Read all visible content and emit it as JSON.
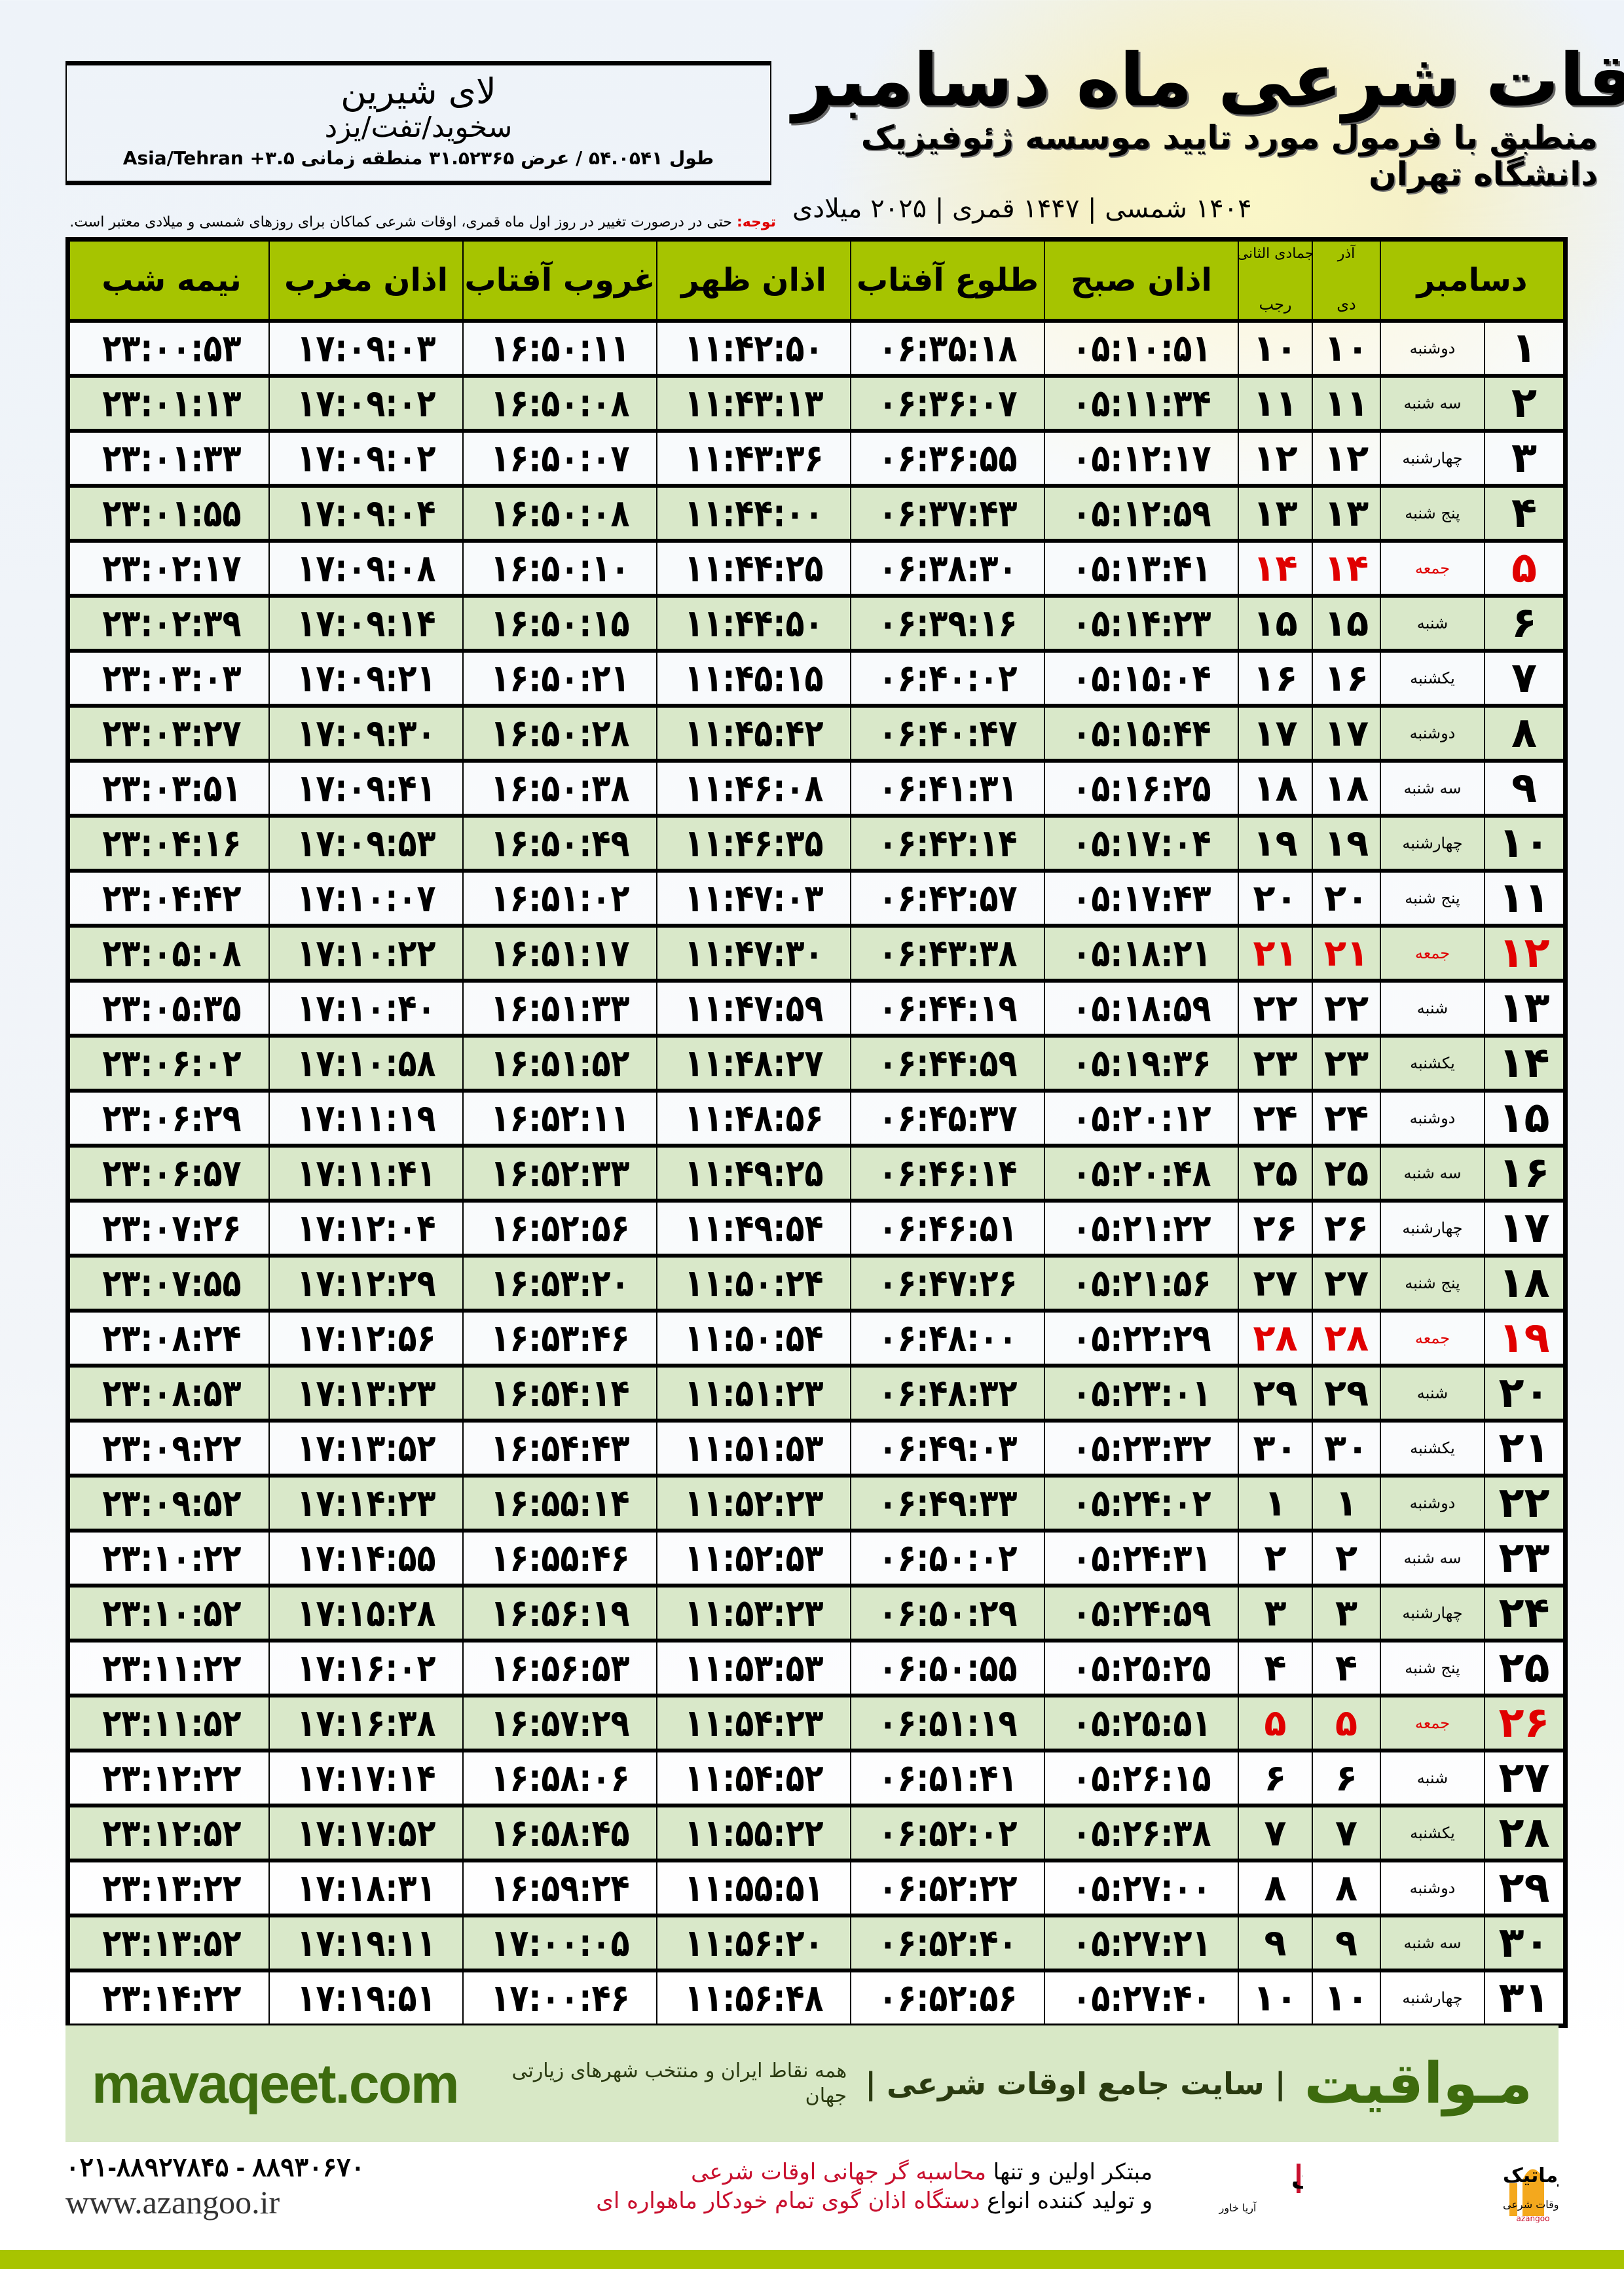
{
  "header": {
    "title": "اوقات شرعی ماه دسامبر",
    "subtitle": "منطبق با فرمول مورد تایید موسسه ژئوفیزیک دانشگاه تهران",
    "dateline": "۱۴۰۴ شمسی | ۱۴۴۷ قمری | ۲۰۲۵ میلادی"
  },
  "location": {
    "city": "لای شیرین",
    "region": "سخوید/تفت/یزد",
    "coords": "طول ۵۴.۰۵۴۱ / عرض ۳۱.۵۲۳۶۵ منطقه زمانی Asia/Tehran +۳.۵"
  },
  "note": {
    "label": "توجه:",
    "text": " حتی در درصورت تغییر در روز اول ماه قمری، اوقات شرعی کماکان برای روزهای شمسی و میلادی معتبر است."
  },
  "table": {
    "headers": {
      "month": "دسامبر",
      "shamsi_top": "آذر",
      "shamsi_bottom": "دی",
      "hijri_top": "جمادی الثانی",
      "hijri_bottom": "رجب",
      "fajr": "اذان صبح",
      "sunrise": "طلوع آفتاب",
      "dhuhr": "اذان ظهر",
      "sunset": "غروب آفتاب",
      "maghrib": "اذان مغرب",
      "midnight": "نیمه شب"
    },
    "friday_color": "#e00000",
    "header_color": "#a6c400",
    "alt_row_color": "#d9e8c9",
    "rows": [
      [
        "۱",
        "دوشنبه",
        "۱۰",
        "۱۰",
        "۰۵:۱۰:۵۱",
        "۰۶:۳۵:۱۸",
        "۱۱:۴۲:۵۰",
        "۱۶:۵۰:۱۱",
        "۱۷:۰۹:۰۳",
        "۲۳:۰۰:۵۳"
      ],
      [
        "۲",
        "سه شنبه",
        "۱۱",
        "۱۱",
        "۰۵:۱۱:۳۴",
        "۰۶:۳۶:۰۷",
        "۱۱:۴۳:۱۳",
        "۱۶:۵۰:۰۸",
        "۱۷:۰۹:۰۲",
        "۲۳:۰۱:۱۳"
      ],
      [
        "۳",
        "چهارشنبه",
        "۱۲",
        "۱۲",
        "۰۵:۱۲:۱۷",
        "۰۶:۳۶:۵۵",
        "۱۱:۴۳:۳۶",
        "۱۶:۵۰:۰۷",
        "۱۷:۰۹:۰۲",
        "۲۳:۰۱:۳۳"
      ],
      [
        "۴",
        "پنج شنبه",
        "۱۳",
        "۱۳",
        "۰۵:۱۲:۵۹",
        "۰۶:۳۷:۴۳",
        "۱۱:۴۴:۰۰",
        "۱۶:۵۰:۰۸",
        "۱۷:۰۹:۰۴",
        "۲۳:۰۱:۵۵"
      ],
      [
        "۵",
        "جمعه",
        "۱۴",
        "۱۴",
        "۰۵:۱۳:۴۱",
        "۰۶:۳۸:۳۰",
        "۱۱:۴۴:۲۵",
        "۱۶:۵۰:۱۰",
        "۱۷:۰۹:۰۸",
        "۲۳:۰۲:۱۷"
      ],
      [
        "۶",
        "شنبه",
        "۱۵",
        "۱۵",
        "۰۵:۱۴:۲۳",
        "۰۶:۳۹:۱۶",
        "۱۱:۴۴:۵۰",
        "۱۶:۵۰:۱۵",
        "۱۷:۰۹:۱۴",
        "۲۳:۰۲:۳۹"
      ],
      [
        "۷",
        "یکشنبه",
        "۱۶",
        "۱۶",
        "۰۵:۱۵:۰۴",
        "۰۶:۴۰:۰۲",
        "۱۱:۴۵:۱۵",
        "۱۶:۵۰:۲۱",
        "۱۷:۰۹:۲۱",
        "۲۳:۰۳:۰۳"
      ],
      [
        "۸",
        "دوشنبه",
        "۱۷",
        "۱۷",
        "۰۵:۱۵:۴۴",
        "۰۶:۴۰:۴۷",
        "۱۱:۴۵:۴۲",
        "۱۶:۵۰:۲۸",
        "۱۷:۰۹:۳۰",
        "۲۳:۰۳:۲۷"
      ],
      [
        "۹",
        "سه شنبه",
        "۱۸",
        "۱۸",
        "۰۵:۱۶:۲۵",
        "۰۶:۴۱:۳۱",
        "۱۱:۴۶:۰۸",
        "۱۶:۵۰:۳۸",
        "۱۷:۰۹:۴۱",
        "۲۳:۰۳:۵۱"
      ],
      [
        "۱۰",
        "چهارشنبه",
        "۱۹",
        "۱۹",
        "۰۵:۱۷:۰۴",
        "۰۶:۴۲:۱۴",
        "۱۱:۴۶:۳۵",
        "۱۶:۵۰:۴۹",
        "۱۷:۰۹:۵۳",
        "۲۳:۰۴:۱۶"
      ],
      [
        "۱۱",
        "پنج شنبه",
        "۲۰",
        "۲۰",
        "۰۵:۱۷:۴۳",
        "۰۶:۴۲:۵۷",
        "۱۱:۴۷:۰۳",
        "۱۶:۵۱:۰۲",
        "۱۷:۱۰:۰۷",
        "۲۳:۰۴:۴۲"
      ],
      [
        "۱۲",
        "جمعه",
        "۲۱",
        "۲۱",
        "۰۵:۱۸:۲۱",
        "۰۶:۴۳:۳۸",
        "۱۱:۴۷:۳۰",
        "۱۶:۵۱:۱۷",
        "۱۷:۱۰:۲۲",
        "۲۳:۰۵:۰۸"
      ],
      [
        "۱۳",
        "شنبه",
        "۲۲",
        "۲۲",
        "۰۵:۱۸:۵۹",
        "۰۶:۴۴:۱۹",
        "۱۱:۴۷:۵۹",
        "۱۶:۵۱:۳۳",
        "۱۷:۱۰:۴۰",
        "۲۳:۰۵:۳۵"
      ],
      [
        "۱۴",
        "یکشنبه",
        "۲۳",
        "۲۳",
        "۰۵:۱۹:۳۶",
        "۰۶:۴۴:۵۹",
        "۱۱:۴۸:۲۷",
        "۱۶:۵۱:۵۲",
        "۱۷:۱۰:۵۸",
        "۲۳:۰۶:۰۲"
      ],
      [
        "۱۵",
        "دوشنبه",
        "۲۴",
        "۲۴",
        "۰۵:۲۰:۱۲",
        "۰۶:۴۵:۳۷",
        "۱۱:۴۸:۵۶",
        "۱۶:۵۲:۱۱",
        "۱۷:۱۱:۱۹",
        "۲۳:۰۶:۲۹"
      ],
      [
        "۱۶",
        "سه شنبه",
        "۲۵",
        "۲۵",
        "۰۵:۲۰:۴۸",
        "۰۶:۴۶:۱۴",
        "۱۱:۴۹:۲۵",
        "۱۶:۵۲:۳۳",
        "۱۷:۱۱:۴۱",
        "۲۳:۰۶:۵۷"
      ],
      [
        "۱۷",
        "چهارشنبه",
        "۲۶",
        "۲۶",
        "۰۵:۲۱:۲۲",
        "۰۶:۴۶:۵۱",
        "۱۱:۴۹:۵۴",
        "۱۶:۵۲:۵۶",
        "۱۷:۱۲:۰۴",
        "۲۳:۰۷:۲۶"
      ],
      [
        "۱۸",
        "پنج شنبه",
        "۲۷",
        "۲۷",
        "۰۵:۲۱:۵۶",
        "۰۶:۴۷:۲۶",
        "۱۱:۵۰:۲۴",
        "۱۶:۵۳:۲۰",
        "۱۷:۱۲:۲۹",
        "۲۳:۰۷:۵۵"
      ],
      [
        "۱۹",
        "جمعه",
        "۲۸",
        "۲۸",
        "۰۵:۲۲:۲۹",
        "۰۶:۴۸:۰۰",
        "۱۱:۵۰:۵۴",
        "۱۶:۵۳:۴۶",
        "۱۷:۱۲:۵۶",
        "۲۳:۰۸:۲۴"
      ],
      [
        "۲۰",
        "شنبه",
        "۲۹",
        "۲۹",
        "۰۵:۲۳:۰۱",
        "۰۶:۴۸:۳۲",
        "۱۱:۵۱:۲۳",
        "۱۶:۵۴:۱۴",
        "۱۷:۱۳:۲۳",
        "۲۳:۰۸:۵۳"
      ],
      [
        "۲۱",
        "یکشنبه",
        "۳۰",
        "۳۰",
        "۰۵:۲۳:۳۲",
        "۰۶:۴۹:۰۳",
        "۱۱:۵۱:۵۳",
        "۱۶:۵۴:۴۳",
        "۱۷:۱۳:۵۲",
        "۲۳:۰۹:۲۲"
      ],
      [
        "۲۲",
        "دوشنبه",
        "۱",
        "۱",
        "۰۵:۲۴:۰۲",
        "۰۶:۴۹:۳۳",
        "۱۱:۵۲:۲۳",
        "۱۶:۵۵:۱۴",
        "۱۷:۱۴:۲۳",
        "۲۳:۰۹:۵۲"
      ],
      [
        "۲۳",
        "سه شنبه",
        "۲",
        "۲",
        "۰۵:۲۴:۳۱",
        "۰۶:۵۰:۰۲",
        "۱۱:۵۲:۵۳",
        "۱۶:۵۵:۴۶",
        "۱۷:۱۴:۵۵",
        "۲۳:۱۰:۲۲"
      ],
      [
        "۲۴",
        "چهارشنبه",
        "۳",
        "۳",
        "۰۵:۲۴:۵۹",
        "۰۶:۵۰:۲۹",
        "۱۱:۵۳:۲۳",
        "۱۶:۵۶:۱۹",
        "۱۷:۱۵:۲۸",
        "۲۳:۱۰:۵۲"
      ],
      [
        "۲۵",
        "پنج شنبه",
        "۴",
        "۴",
        "۰۵:۲۵:۲۵",
        "۰۶:۵۰:۵۵",
        "۱۱:۵۳:۵۳",
        "۱۶:۵۶:۵۳",
        "۱۷:۱۶:۰۲",
        "۲۳:۱۱:۲۲"
      ],
      [
        "۲۶",
        "جمعه",
        "۵",
        "۵",
        "۰۵:۲۵:۵۱",
        "۰۶:۵۱:۱۹",
        "۱۱:۵۴:۲۳",
        "۱۶:۵۷:۲۹",
        "۱۷:۱۶:۳۸",
        "۲۳:۱۱:۵۲"
      ],
      [
        "۲۷",
        "شنبه",
        "۶",
        "۶",
        "۰۵:۲۶:۱۵",
        "۰۶:۵۱:۴۱",
        "۱۱:۵۴:۵۲",
        "۱۶:۵۸:۰۶",
        "۱۷:۱۷:۱۴",
        "۲۳:۱۲:۲۲"
      ],
      [
        "۲۸",
        "یکشنبه",
        "۷",
        "۷",
        "۰۵:۲۶:۳۸",
        "۰۶:۵۲:۰۲",
        "۱۱:۵۵:۲۲",
        "۱۶:۵۸:۴۵",
        "۱۷:۱۷:۵۲",
        "۲۳:۱۲:۵۲"
      ],
      [
        "۲۹",
        "دوشنبه",
        "۸",
        "۸",
        "۰۵:۲۷:۰۰",
        "۰۶:۵۲:۲۲",
        "۱۱:۵۵:۵۱",
        "۱۶:۵۹:۲۴",
        "۱۷:۱۸:۳۱",
        "۲۳:۱۳:۲۲"
      ],
      [
        "۳۰",
        "سه شنبه",
        "۹",
        "۹",
        "۰۵:۲۷:۲۱",
        "۰۶:۵۲:۴۰",
        "۱۱:۵۶:۲۰",
        "۱۷:۰۰:۰۵",
        "۱۷:۱۹:۱۱",
        "۲۳:۱۳:۵۲"
      ],
      [
        "۳۱",
        "چهارشنبه",
        "۱۰",
        "۱۰",
        "۰۵:۲۷:۴۰",
        "۰۶:۵۲:۵۶",
        "۱۱:۵۶:۴۸",
        "۱۷:۰۰:۴۶",
        "۱۷:۱۹:۵۱",
        "۲۳:۱۴:۲۲"
      ]
    ]
  },
  "footer": {
    "brand": "مـواقیت",
    "brand_tagline": "| سایت جامع اوقات شرعی |",
    "brand_sub": "همه نقاط ایران و منتخب شهرهای زیارتی جهان",
    "site": "mavaqeet.com",
    "promo_line1_a": "مبتکر اولین و تنها ",
    "promo_line1_b": "محاسبه گر جهانی اوقات شرعی",
    "promo_line2_a": "و تولید کننده انواع ",
    "promo_line2_b": "دستگاه اذان گوی تمام خودکار ماهواره ای",
    "phone": "۰۲۱-۸۸۹۲۷۸۴۵ - ۸۸۹۳۰۶۷۰",
    "web": "www.azangoo.ir",
    "logo_azangoo": "اذانگو اتوماتیک azangoo محاسبه گر جهانی اوقات شرعی",
    "logo_rayanik": "رایانیک آریا خاور (با مسئولیت محدود)",
    "accent_color": "#a8c400",
    "brand_color": "#3d6b0e",
    "highlight_color": "#c8102e"
  }
}
